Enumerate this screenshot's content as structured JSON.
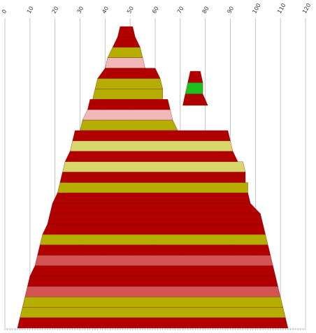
{
  "chart_data": {
    "type": "area",
    "title": "",
    "xlabel": "",
    "ylabel": "",
    "xlim": [
      0,
      120
    ],
    "x_ticks": [
      "0",
      "10",
      "20",
      "30",
      "40",
      "50",
      "60",
      "70",
      "80",
      "90",
      "100",
      "110",
      "120"
    ],
    "grid": true,
    "legend": "none",
    "colors": {
      "red": "#b00000",
      "olive": "#b5ad00",
      "pink": "#d45454",
      "light_pink": "#f0b8b8",
      "light_yellow": "#d8d56a",
      "green": "#1ebe1e"
    },
    "profiles": [
      {
        "name": "",
        "bands": [
          {
            "color": "red",
            "top": [
              46,
              51
            ],
            "bottom": [
              45,
              52
            ]
          },
          {
            "color": "red",
            "top": [
              45,
              52
            ],
            "bottom": [
              43,
              54
            ]
          },
          {
            "color": "olive",
            "top": [
              43,
              54
            ],
            "bottom": [
              41,
              55
            ]
          },
          {
            "color": "light_pink",
            "top": [
              41,
              55
            ],
            "bottom": [
              40,
              56
            ]
          },
          {
            "color": "red",
            "top": [
              40,
              60
            ],
            "bottom": [
              37,
              62
            ]
          },
          {
            "color": "olive",
            "top": [
              37,
              62
            ],
            "bottom": [
              36,
              63
            ]
          },
          {
            "color": "olive",
            "top": [
              36,
              63
            ],
            "bottom": [
              35,
              63
            ]
          },
          {
            "color": "red",
            "top": [
              34,
              65
            ],
            "bottom": [
              33,
              66
            ]
          },
          {
            "color": "light_pink",
            "top": [
              33,
              66
            ],
            "bottom": [
              31,
              67
            ]
          },
          {
            "color": "olive",
            "top": [
              31,
              67
            ],
            "bottom": [
              30,
              69
            ]
          },
          {
            "color": "red",
            "top": [
              28,
              89
            ],
            "bottom": [
              27,
              90
            ]
          },
          {
            "color": "light_yellow",
            "top": [
              27,
              90
            ],
            "bottom": [
              26,
              91
            ]
          },
          {
            "color": "red",
            "top": [
              26,
              91
            ],
            "bottom": [
              24,
              93
            ]
          },
          {
            "color": "light_yellow",
            "top": [
              24,
              95
            ],
            "bottom": [
              23,
              96
            ]
          },
          {
            "color": "red",
            "top": [
              23,
              96
            ],
            "bottom": [
              22,
              96
            ]
          },
          {
            "color": "olive",
            "top": [
              22,
              97
            ],
            "bottom": [
              21,
              97
            ]
          },
          {
            "color": "red",
            "top": [
              21,
              97
            ],
            "bottom": [
              19,
              98
            ]
          },
          {
            "color": "red",
            "top": [
              19,
              98
            ],
            "bottom": [
              18,
              102
            ]
          },
          {
            "color": "red",
            "top": [
              18,
              102
            ],
            "bottom": [
              17,
              103
            ]
          },
          {
            "color": "red",
            "top": [
              17,
              103
            ],
            "bottom": [
              15,
              104
            ]
          },
          {
            "color": "olive",
            "top": [
              15,
              104
            ],
            "bottom": [
              14,
              105
            ]
          },
          {
            "color": "red",
            "top": [
              14,
              105
            ],
            "bottom": [
              13,
              106
            ]
          },
          {
            "color": "pink",
            "top": [
              13,
              106
            ],
            "bottom": [
              12,
              107
            ]
          },
          {
            "color": "red",
            "top": [
              12,
              107
            ],
            "bottom": [
              10,
              108
            ]
          },
          {
            "color": "red",
            "top": [
              10,
              108
            ],
            "bottom": [
              9,
              109
            ]
          },
          {
            "color": "pink",
            "top": [
              9,
              109
            ],
            "bottom": [
              8,
              110
            ]
          },
          {
            "color": "olive",
            "top": [
              8,
              110
            ],
            "bottom": [
              7,
              111
            ]
          },
          {
            "color": "olive",
            "top": [
              7,
              111
            ],
            "bottom": [
              6,
              112
            ]
          },
          {
            "color": "red",
            "top": [
              6,
              112
            ],
            "bottom": [
              5,
              113
            ]
          }
        ]
      },
      {
        "name": "",
        "bands": [
          {
            "color": "red",
            "top": [
              74,
              78
            ],
            "bottom": [
              73,
              79
            ]
          },
          {
            "color": "green",
            "top": [
              73,
              79
            ],
            "bottom": [
              72,
              79
            ]
          },
          {
            "color": "red",
            "top": [
              72,
              79
            ],
            "bottom": [
              71,
              81
            ]
          }
        ]
      }
    ]
  }
}
